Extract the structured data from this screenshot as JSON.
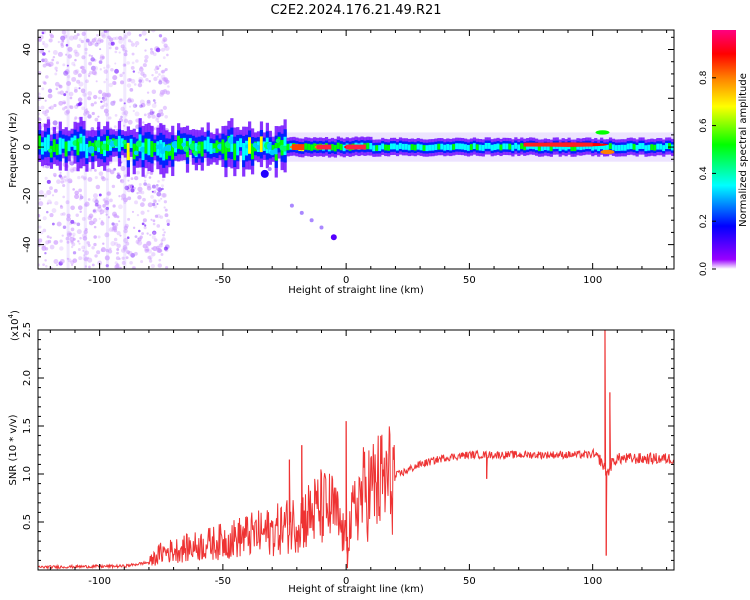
{
  "title": "C2E2.2024.176.21.49.R21",
  "chart_data": [
    {
      "type": "heatmap",
      "xlabel": "Height of straight line (km)",
      "ylabel": "Frequency (Hz)",
      "xlim": [
        -125,
        133
      ],
      "ylim": [
        -50,
        48
      ],
      "xticks": [
        -100,
        -50,
        0,
        50,
        100
      ],
      "yticks": [
        -40,
        -20,
        0,
        20,
        40
      ],
      "colorbar": {
        "label": "Normalized spectral amplitude",
        "range": [
          0,
          1
        ],
        "ticks": [
          0.0,
          0.2,
          0.4,
          0.6,
          0.8
        ],
        "colormap": [
          "#9900ff",
          "#0000ff",
          "#00ffff",
          "#00ff00",
          "#ffff00",
          "#ff8000",
          "#ff0000",
          "#ff0080"
        ]
      },
      "band_center_hz": 0,
      "band_halfwidth_hz": 4,
      "hotspots": [
        {
          "x": -20,
          "y": 0,
          "value": 0.85
        },
        {
          "x": -10,
          "y": 0,
          "value": 0.85
        },
        {
          "x": 2,
          "y": 0,
          "value": 0.9
        },
        {
          "x": 90,
          "y": 1,
          "value": 0.9
        },
        {
          "x": 104,
          "y": 6,
          "value": 0.55
        },
        {
          "x": 106,
          "y": -2,
          "value": 0.8
        }
      ],
      "scatter_trail": [
        {
          "x": -22,
          "y": -24
        },
        {
          "x": -18,
          "y": -27
        },
        {
          "x": -14,
          "y": -30
        },
        {
          "x": -10,
          "y": -33
        },
        {
          "x": -5,
          "y": -37
        },
        {
          "x": -33,
          "y": -11
        },
        {
          "x": -31,
          "y": -9
        }
      ],
      "noise_region": [
        -125,
        -80
      ]
    },
    {
      "type": "line",
      "xlabel": "Height of straight line (km)",
      "ylabel": "SNR (10 * v/v)",
      "yscale_label": "(x10",
      "yscale_exp": "4",
      "xlim": [
        -125,
        133
      ],
      "ylim": [
        0,
        2.5
      ],
      "xticks": [
        -100,
        -50,
        0,
        50,
        100
      ],
      "yticks": [
        0.5,
        1.0,
        1.5,
        2.0,
        2.5
      ],
      "color": "#ee3333",
      "envelope": {
        "x": [
          -125,
          -90,
          -80,
          -75,
          -60,
          -50,
          -40,
          -30,
          -20,
          -10,
          -5,
          0,
          5,
          10,
          20,
          30,
          40,
          50,
          60,
          70,
          80,
          90,
          100,
          103,
          106,
          108,
          110,
          120,
          133
        ],
        "y": [
          0.03,
          0.04,
          0.08,
          0.18,
          0.25,
          0.3,
          0.36,
          0.4,
          0.5,
          0.65,
          0.62,
          0.3,
          0.75,
          0.85,
          0.98,
          1.1,
          1.17,
          1.2,
          1.2,
          1.2,
          1.2,
          1.2,
          1.2,
          1.15,
          1.0,
          1.12,
          1.16,
          1.16,
          1.16
        ]
      },
      "spikes": [
        {
          "x": 0,
          "y": 1.55
        },
        {
          "x": 0.5,
          "y": 0.02
        },
        {
          "x": -23,
          "y": 1.15
        },
        {
          "x": -18,
          "y": 1.3
        },
        {
          "x": 57,
          "y": 0.95
        },
        {
          "x": 105,
          "y": 2.5
        },
        {
          "x": 105.5,
          "y": 0.15
        },
        {
          "x": 107,
          "y": 1.85
        }
      ]
    }
  ]
}
